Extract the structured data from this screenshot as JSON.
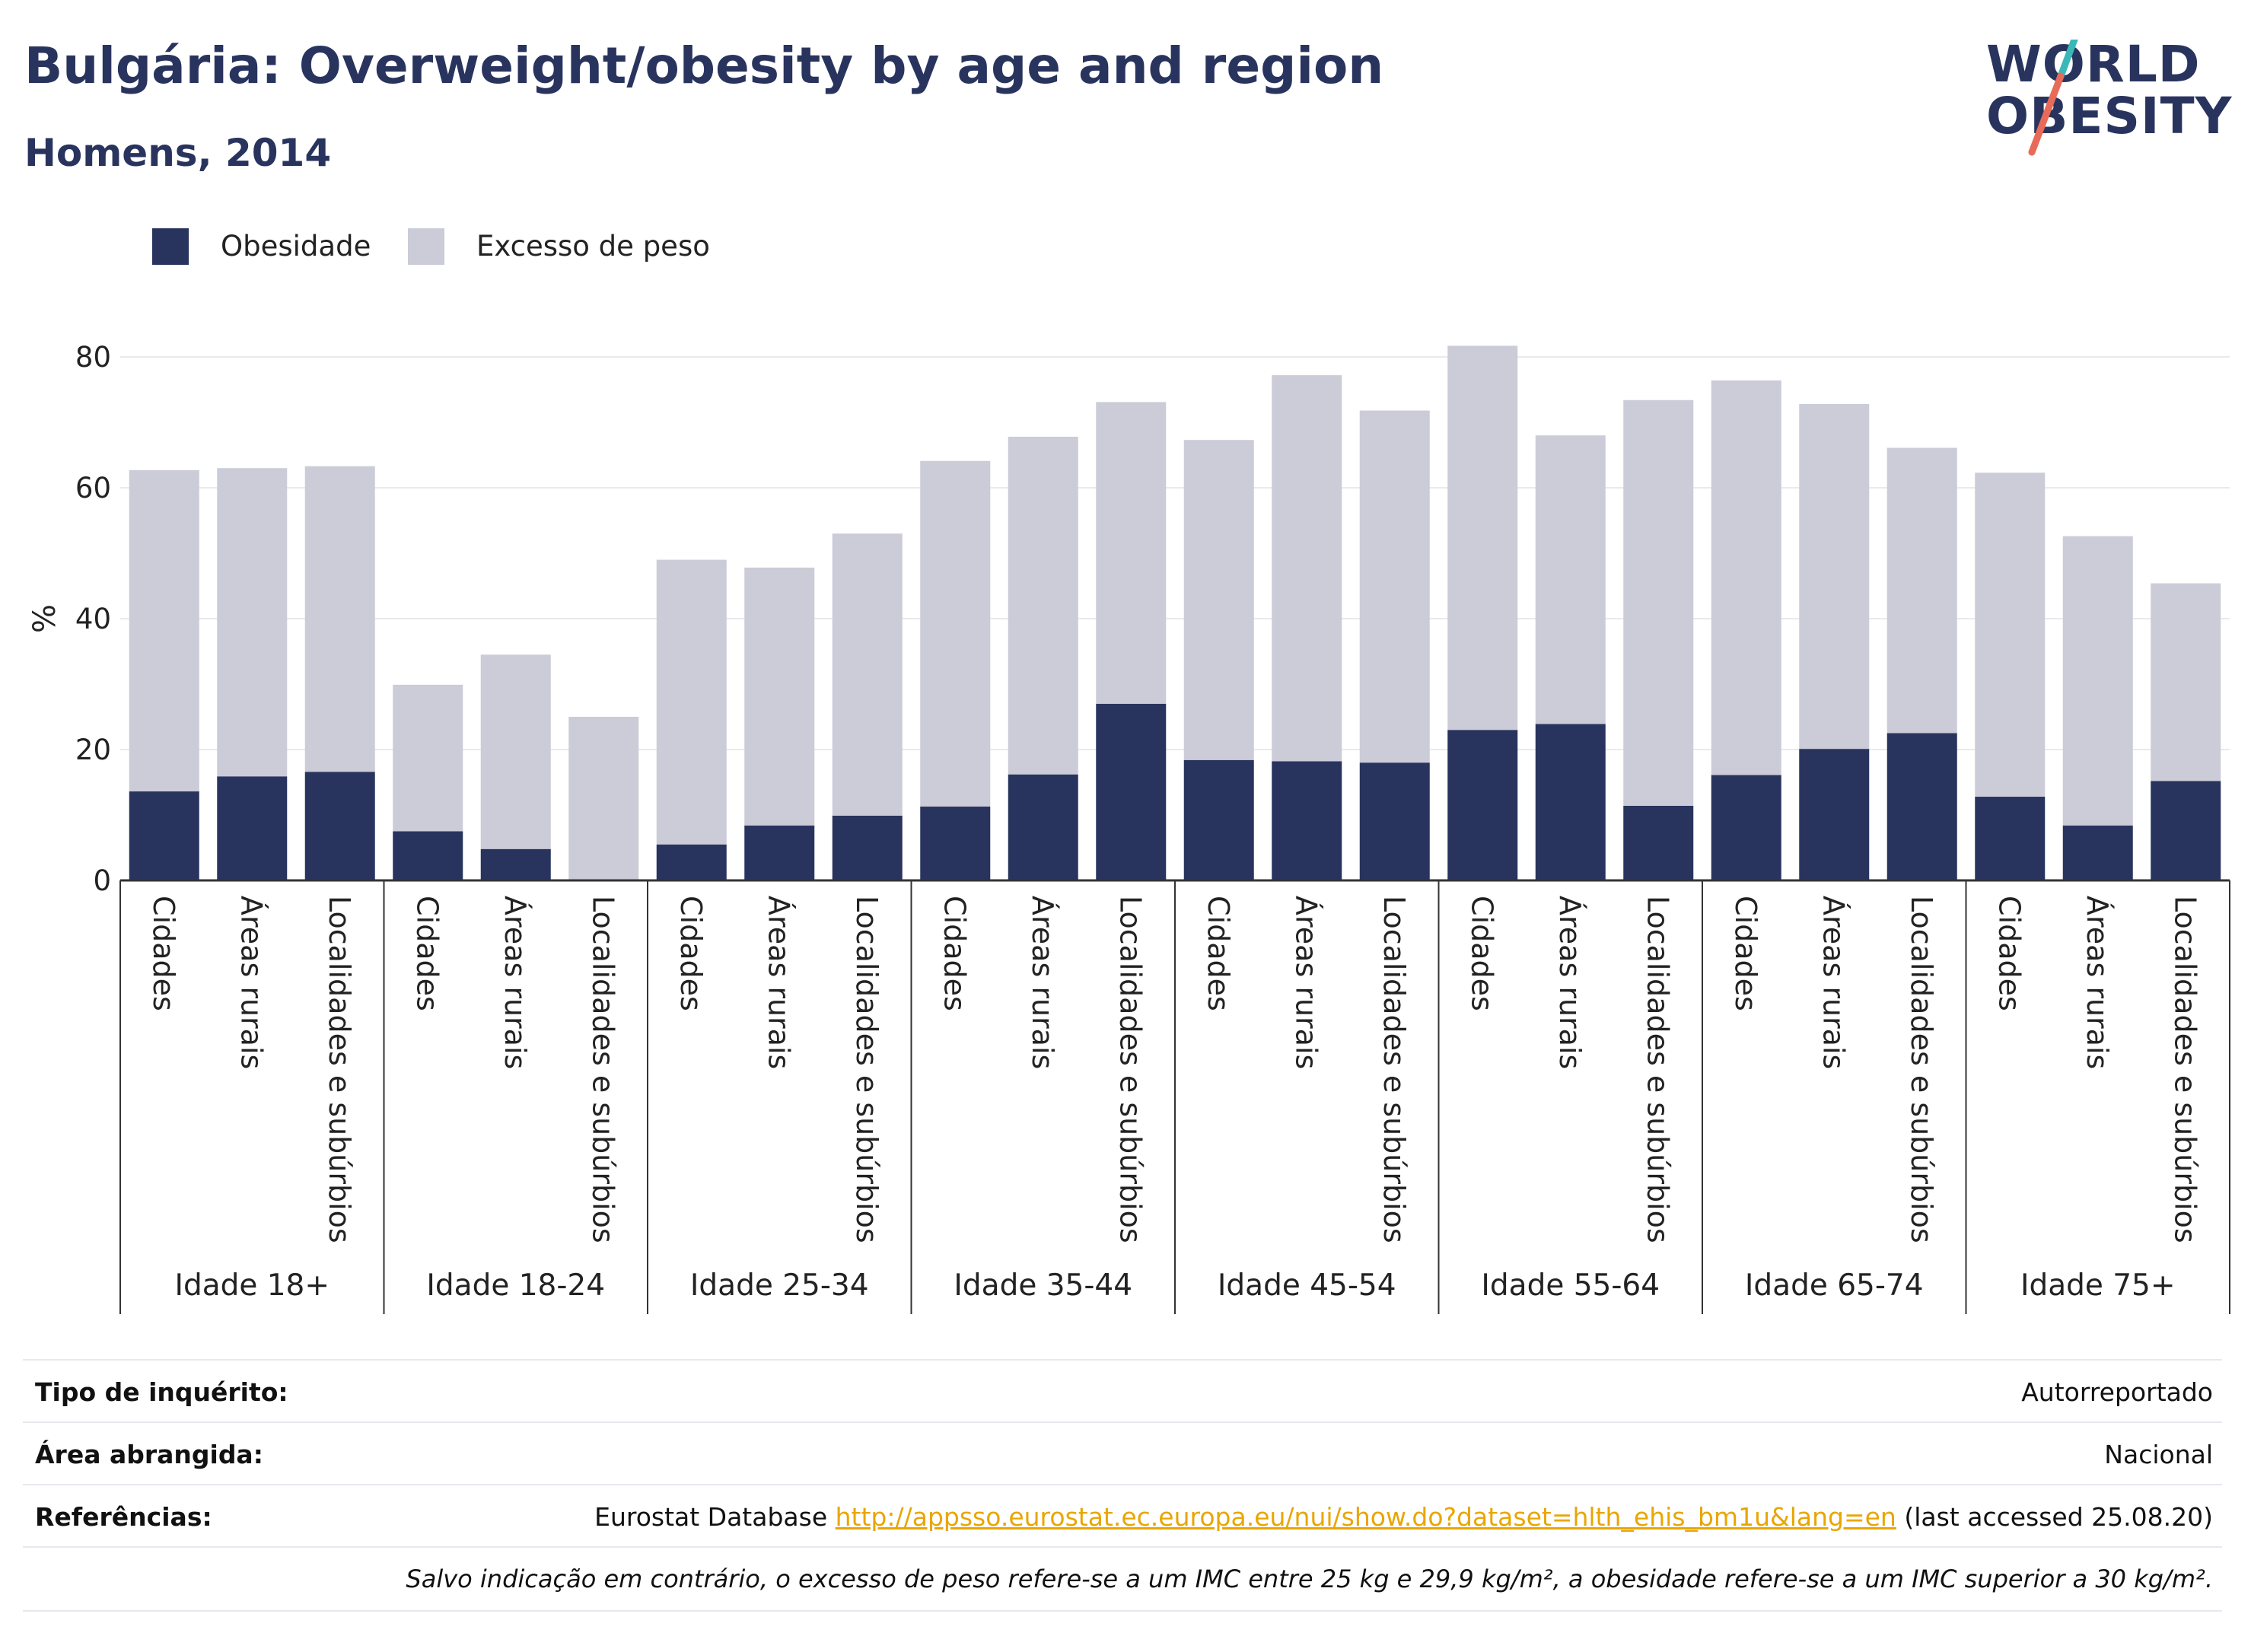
{
  "header": {
    "title": "Bulgária: Overweight/obesity by age and region",
    "subtitle": "Homens, 2014"
  },
  "logo": {
    "line1": "WORLD",
    "line2": "OBESITY",
    "slash_colors": [
      "#3ab8b8",
      "#e86a58"
    ]
  },
  "colors": {
    "obesity": "#29345e",
    "overweight": "#cbccd8",
    "text": "#111111",
    "grid": "#e9e9ee",
    "link": "#e8a600"
  },
  "chart_data": {
    "type": "bar",
    "stacked": true,
    "ylabel": "%",
    "ylim": [
      0,
      90
    ],
    "yticks": [
      0,
      20,
      40,
      60,
      80
    ],
    "grid": true,
    "legend_position": "top-left",
    "groups": [
      {
        "label": "Idade 18+",
        "categories": [
          "Cidades",
          "Áreas rurais",
          "Localidades e subúrbios"
        ]
      },
      {
        "label": "Idade 18-24",
        "categories": [
          "Cidades",
          "Áreas rurais",
          "Localidades e subúrbios"
        ]
      },
      {
        "label": "Idade 25-34",
        "categories": [
          "Cidades",
          "Áreas rurais",
          "Localidades e subúrbios"
        ]
      },
      {
        "label": "Idade 35-44",
        "categories": [
          "Cidades",
          "Áreas rurais",
          "Localidades e subúrbios"
        ]
      },
      {
        "label": "Idade 45-54",
        "categories": [
          "Cidades",
          "Áreas rurais",
          "Localidades e subúrbios"
        ]
      },
      {
        "label": "Idade 55-64",
        "categories": [
          "Cidades",
          "Áreas rurais",
          "Localidades e subúrbios"
        ]
      },
      {
        "label": "Idade 65-74",
        "categories": [
          "Cidades",
          "Áreas rurais",
          "Localidades e subúrbios"
        ]
      },
      {
        "label": "Idade 75+",
        "categories": [
          "Cidades",
          "Áreas rurais",
          "Localidades e subúrbios"
        ]
      }
    ],
    "series": [
      {
        "name": "Obesidade",
        "values": [
          13.6,
          15.9,
          16.6,
          7.5,
          4.8,
          0,
          5.5,
          8.4,
          9.9,
          11.3,
          16.2,
          27.0,
          18.4,
          18.2,
          18.0,
          23.0,
          23.9,
          11.4,
          16.1,
          20.1,
          22.5,
          12.8,
          8.4,
          15.2
        ]
      },
      {
        "name": "Excesso de peso",
        "values": [
          49.1,
          47.1,
          46.7,
          22.4,
          29.7,
          25.0,
          43.5,
          39.4,
          43.1,
          52.8,
          51.6,
          46.1,
          48.9,
          59.0,
          53.8,
          58.7,
          44.1,
          62.0,
          60.3,
          52.7,
          43.6,
          49.5,
          44.2,
          30.2
        ]
      }
    ]
  },
  "meta": {
    "rows": [
      {
        "key": "Tipo de inquérito:",
        "value": "Autorreportado"
      },
      {
        "key": "Área abrangida:",
        "value": "Nacional"
      },
      {
        "key": "Referências:",
        "value_prefix": "Eurostat Database ",
        "link": "http://appsso.eurostat.ec.europa.eu/nui/show.do?dataset=hlth_ehis_bm1u&lang=en",
        "value_suffix": " (last accessed 25.08.20)"
      }
    ],
    "note": "Salvo indicação em contrário, o excesso de peso refere-se a um IMC entre 25 kg e 29,9 kg/m², a obesidade refere-se a um IMC superior a 30 kg/m²."
  }
}
